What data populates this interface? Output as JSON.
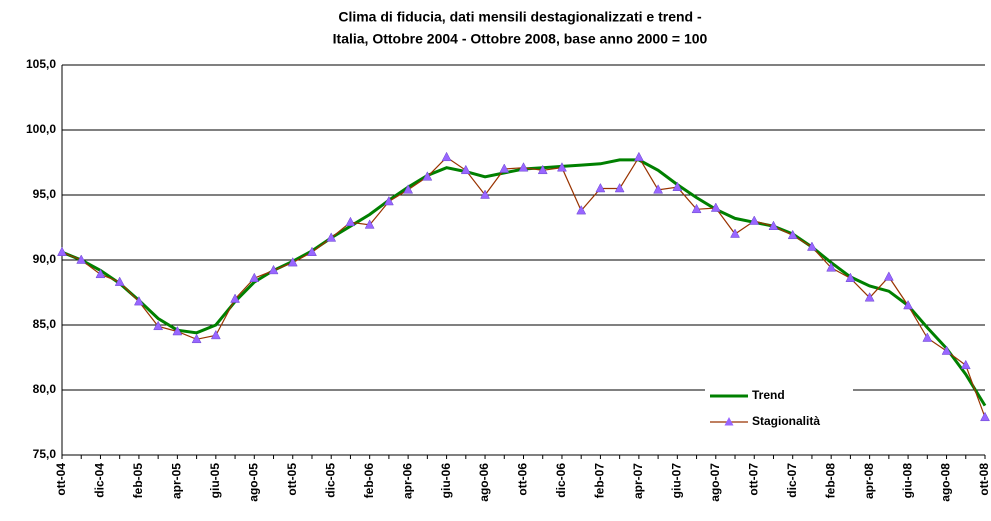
{
  "chart_data": {
    "type": "line",
    "title": [
      "Clima di fiducia, dati mensili destagionalizzati e trend -",
      "Italia, Ottobre 2004 - Ottobre 2008, base anno 2000 = 100"
    ],
    "categories": [
      "ott-04",
      null,
      "dic-04",
      null,
      "feb-05",
      null,
      "apr-05",
      null,
      "giu-05",
      null,
      "ago-05",
      null,
      "ott-05",
      null,
      "dic-05",
      null,
      "feb-06",
      null,
      "apr-06",
      null,
      "giu-06",
      null,
      "ago-06",
      null,
      "ott-06",
      null,
      "dic-06",
      null,
      "feb-07",
      null,
      "apr-07",
      null,
      "giu-07",
      null,
      "ago-07",
      null,
      "ott-07",
      null,
      "dic-07",
      null,
      "feb-08",
      null,
      "apr-08",
      null,
      "giu-08",
      null,
      "ago-08",
      null,
      "ott-08"
    ],
    "series": [
      {
        "name": "Trend",
        "color": "#008000",
        "values": [
          90.6,
          90.0,
          89.2,
          88.2,
          86.9,
          85.5,
          84.6,
          84.4,
          85.0,
          86.8,
          88.3,
          89.2,
          89.9,
          90.7,
          91.7,
          92.6,
          93.5,
          94.6,
          95.6,
          96.5,
          97.1,
          96.8,
          96.4,
          96.7,
          97.0,
          97.1,
          97.2,
          97.3,
          97.4,
          97.7,
          97.7,
          96.9,
          95.8,
          94.8,
          93.9,
          93.2,
          92.9,
          92.6,
          92.0,
          91.0,
          89.8,
          88.7,
          88.0,
          87.6,
          86.5,
          84.8,
          83.2,
          81.2,
          78.8
        ]
      },
      {
        "name": "Stagionalità",
        "color": "#993300",
        "marker_color": "#9966ff",
        "values": [
          90.6,
          90.0,
          88.9,
          88.3,
          86.8,
          84.9,
          84.5,
          83.9,
          84.2,
          87.0,
          88.6,
          89.2,
          89.8,
          90.6,
          91.7,
          92.9,
          92.7,
          94.5,
          95.4,
          96.4,
          97.9,
          96.9,
          95.0,
          97.0,
          97.1,
          96.9,
          97.1,
          93.8,
          95.5,
          95.5,
          97.9,
          95.4,
          95.6,
          93.9,
          94.0,
          92.0,
          93.0,
          92.6,
          91.9,
          91.0,
          89.4,
          88.6,
          87.1,
          88.7,
          86.5,
          84.0,
          83.0,
          81.9,
          77.9
        ]
      }
    ],
    "ylim": [
      75,
      105
    ],
    "yticks": [
      {
        "value": 75,
        "label": "75,0"
      },
      {
        "value": 80,
        "label": "80,0"
      },
      {
        "value": 85,
        "label": "85,0"
      },
      {
        "value": 90,
        "label": "90,0"
      },
      {
        "value": 95,
        "label": "95,0"
      },
      {
        "value": 100,
        "label": "100,0"
      },
      {
        "value": 105,
        "label": "105,0"
      }
    ],
    "grid": true
  }
}
